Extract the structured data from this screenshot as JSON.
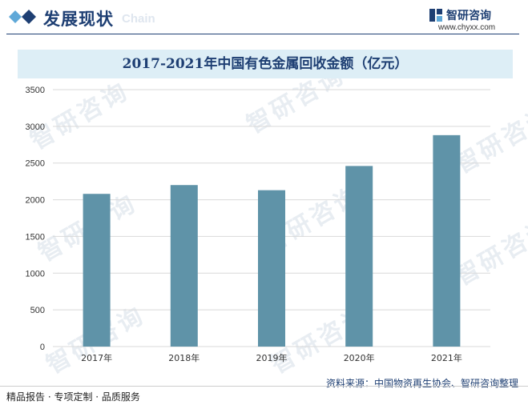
{
  "header": {
    "section_title": "发展现状",
    "section_sub": "Chain",
    "brand_name": "智研咨询",
    "brand_url": "www.chyxx.com"
  },
  "watermark_text": "智研咨询",
  "chart_data": {
    "type": "bar",
    "title": "2017-2021年中国有色金属回收金额（亿元）",
    "categories": [
      "2017年",
      "2018年",
      "2019年",
      "2020年",
      "2021年"
    ],
    "values": [
      2080,
      2200,
      2130,
      2460,
      2880
    ],
    "ylim": [
      0,
      3500
    ],
    "yticks": [
      0,
      500,
      1000,
      1500,
      2000,
      2500,
      3000,
      3500
    ],
    "grid": true,
    "bar_color": "#5f93a8",
    "xlabel": "",
    "ylabel": ""
  },
  "footer": {
    "source": "资料来源：中国物资再生协会、智研咨询整理",
    "tagline": "精品报告 · 专项定制 · 品质服务"
  },
  "colors": {
    "brand": "#1e3f73",
    "title_band": "#ddeef6",
    "accent_light": "#5fa8d8"
  }
}
